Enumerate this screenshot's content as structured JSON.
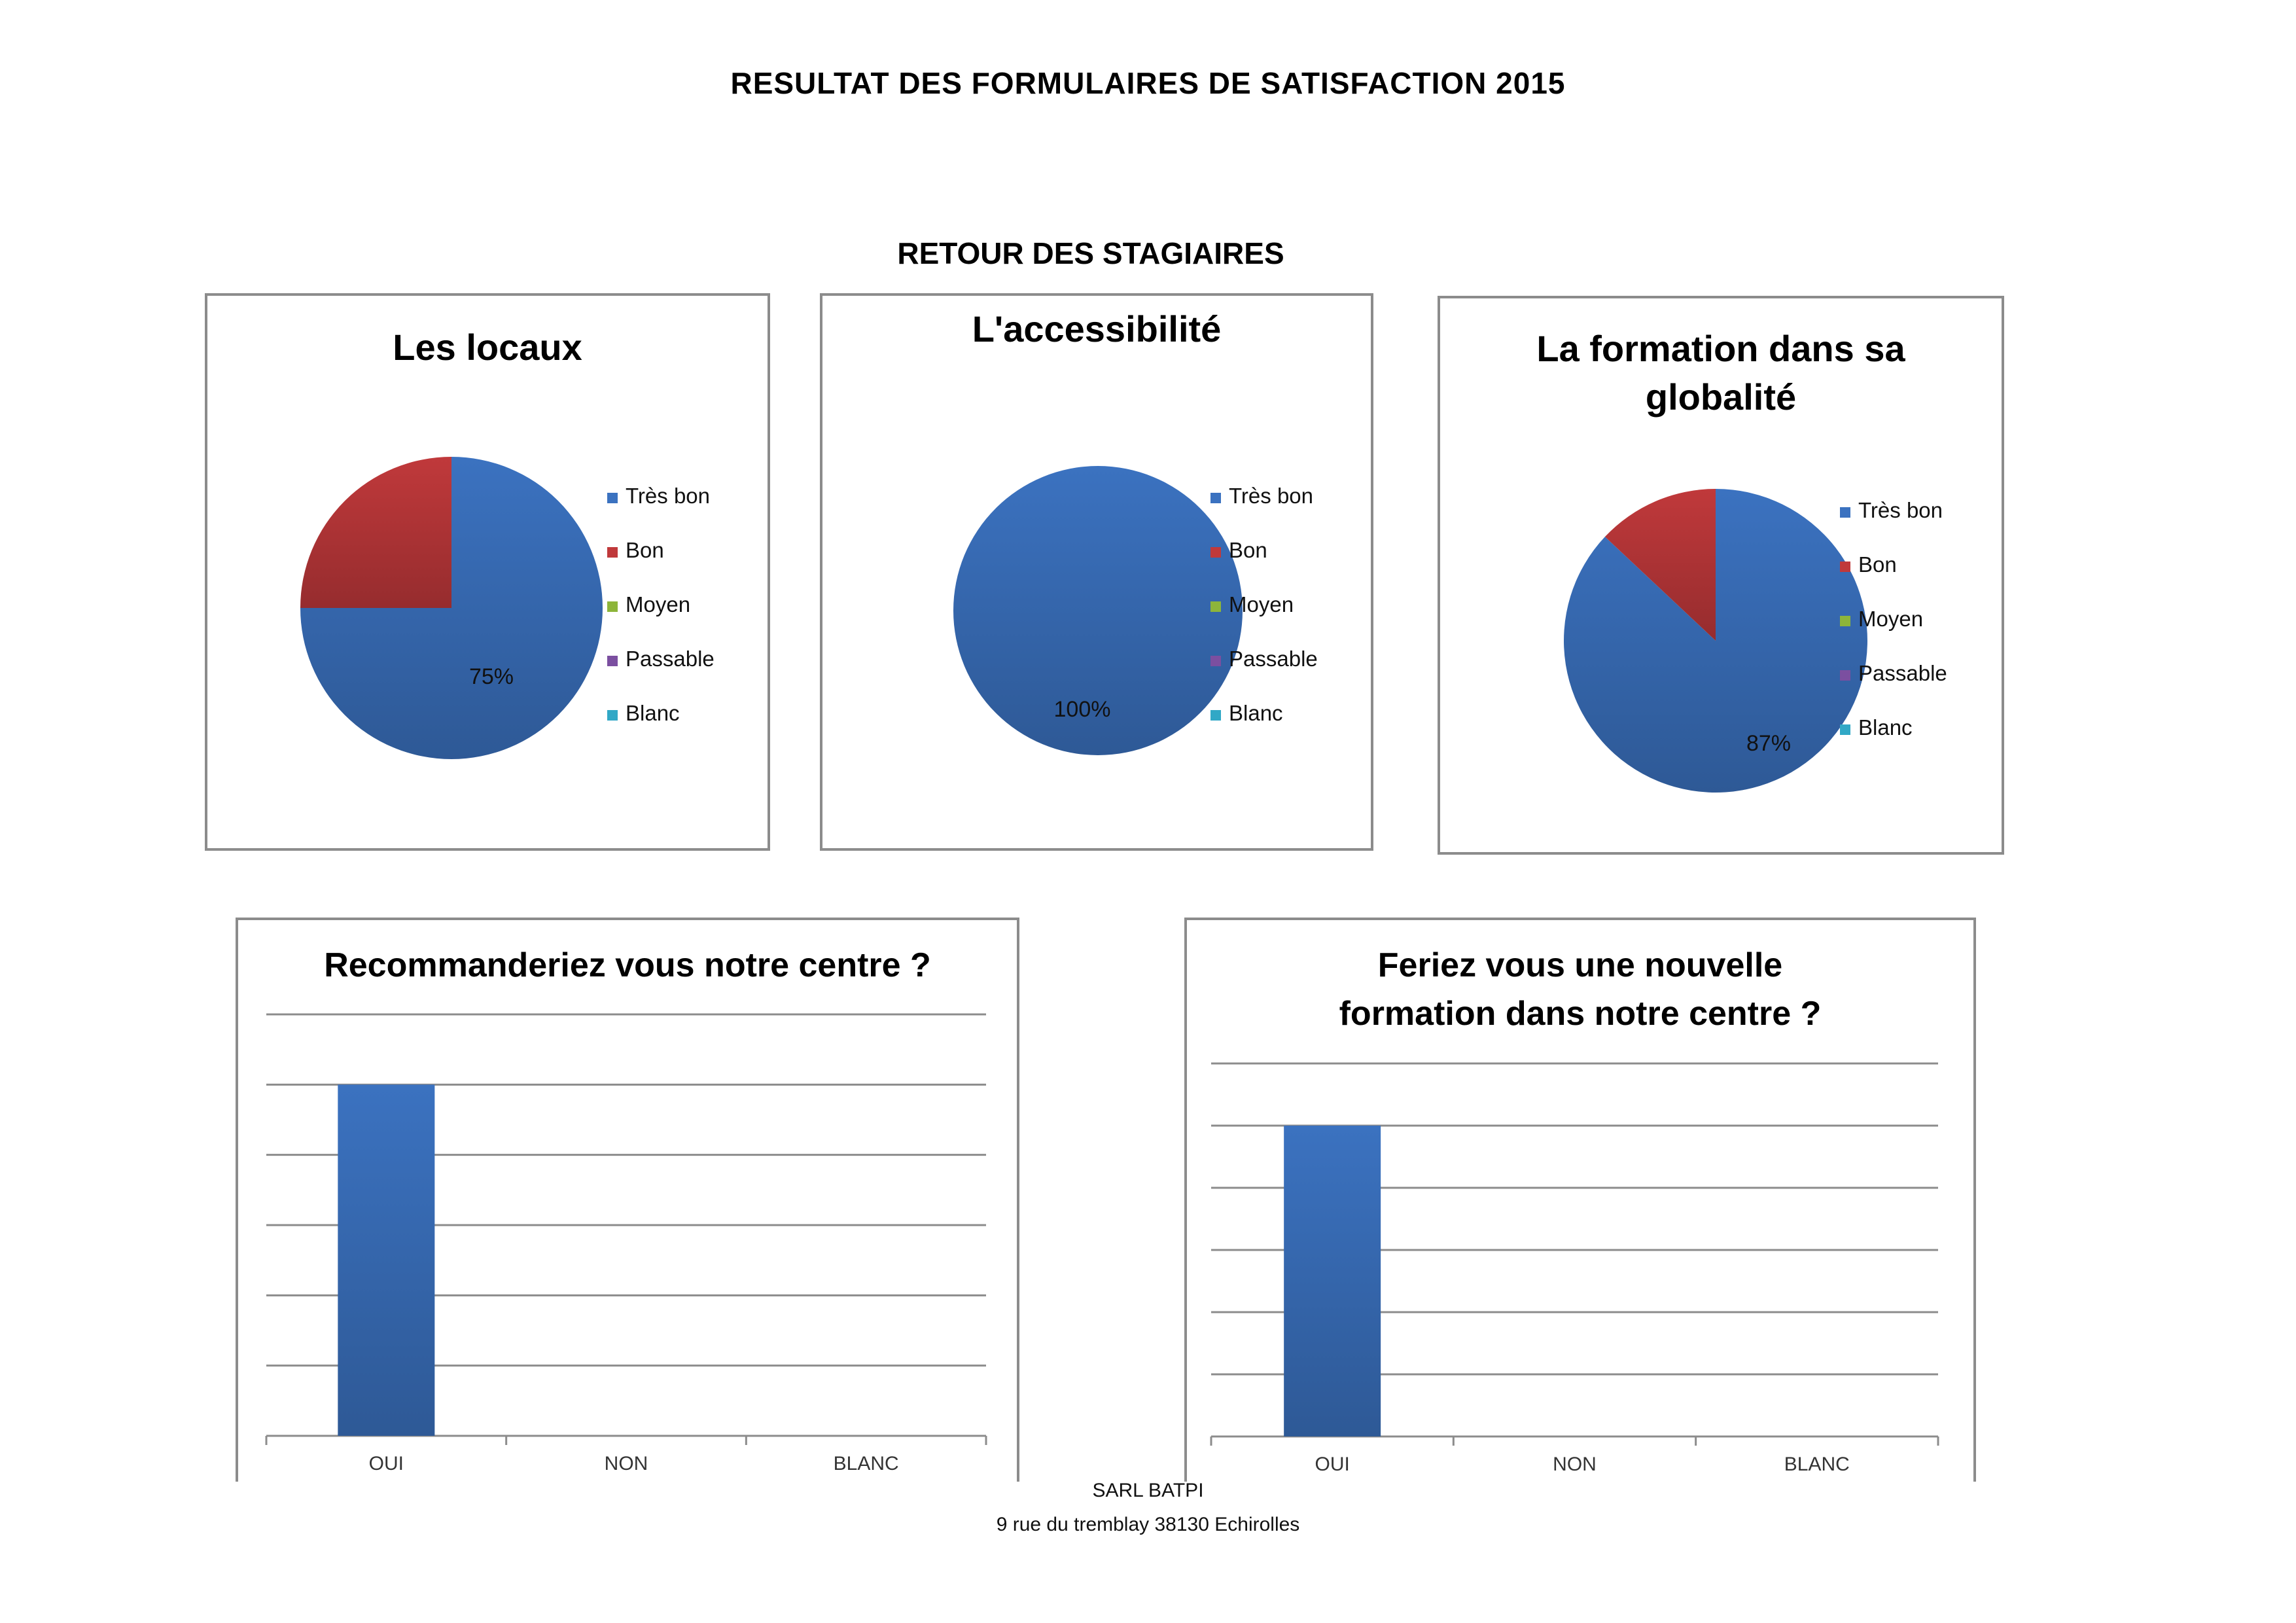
{
  "header": {
    "title": "RESULTAT DES FORMULAIRES DE SATISFACTION  2015",
    "subtitle": "RETOUR DES STAGIAIRES"
  },
  "footer": {
    "company": "SARL BATPI",
    "address": "9 rue du tremblay 38130 Echirolles"
  },
  "colors": {
    "tres_bon": "#3b72c0",
    "bon": "#c0393b",
    "moyen": "#8db53a",
    "passable": "#7b4fa0",
    "blanc": "#31a8c6",
    "grid": "#8c8c8c",
    "border": "#8c8c8c"
  },
  "chart_data": [
    {
      "type": "pie",
      "title": "Les locaux",
      "categories": [
        "Très bon",
        "Bon",
        "Moyen",
        "Passable",
        "Blanc"
      ],
      "values": [
        75,
        25,
        0,
        0,
        0
      ],
      "data_labels": [
        "75%"
      ],
      "legend": "right"
    },
    {
      "type": "pie",
      "title": "L'accessibilité",
      "categories": [
        "Très bon",
        "Bon",
        "Moyen",
        "Passable",
        "Blanc"
      ],
      "values": [
        100,
        0,
        0,
        0,
        0
      ],
      "data_labels": [
        "100%"
      ],
      "legend": "right"
    },
    {
      "type": "pie",
      "title": "La formation dans sa globalité",
      "categories": [
        "Très bon",
        "Bon",
        "Moyen",
        "Passable",
        "Blanc"
      ],
      "values": [
        87,
        13,
        0,
        0,
        0
      ],
      "data_labels": [
        "87%"
      ],
      "legend": "right"
    },
    {
      "type": "bar",
      "title": "Recommanderiez vous notre centre ?",
      "categories": [
        "OUI",
        "NON",
        "BLANC"
      ],
      "values": [
        5,
        0,
        0
      ],
      "ylim": [
        0,
        6
      ],
      "grid": true
    },
    {
      "type": "bar",
      "title": "Feriez vous une nouvelle formation dans notre centre ?",
      "categories": [
        "OUI",
        "NON",
        "BLANC"
      ],
      "values": [
        5,
        0,
        0
      ],
      "ylim": [
        0,
        6
      ],
      "grid": true
    }
  ]
}
